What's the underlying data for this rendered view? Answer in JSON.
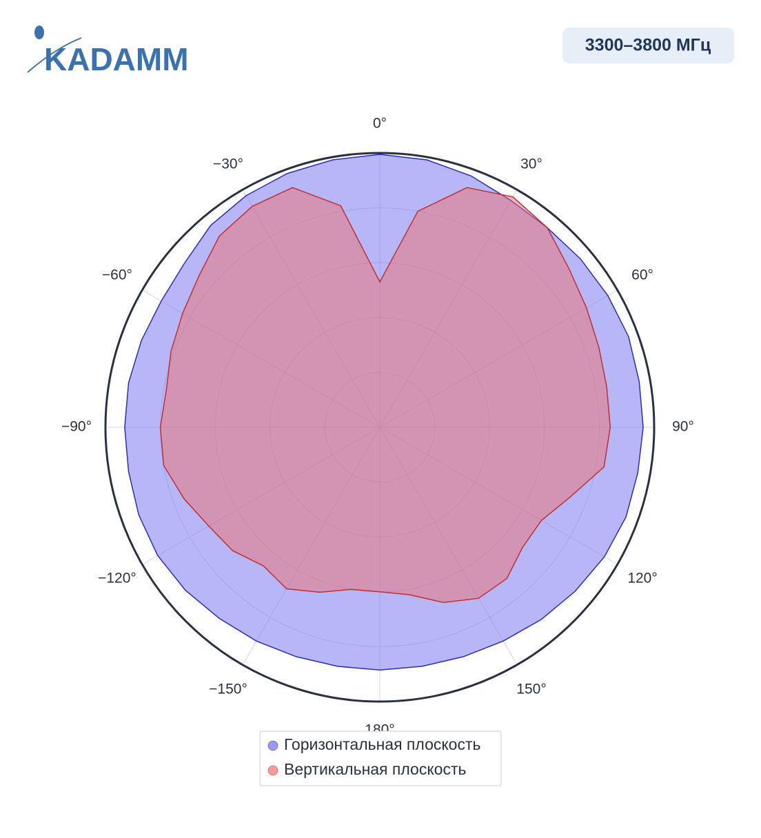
{
  "header": {
    "logo": "KADAMM",
    "badge": "3300–3800 МГц"
  },
  "chart_data": {
    "type": "polar-area",
    "theta": [
      0,
      10,
      20,
      30,
      40,
      50,
      60,
      70,
      80,
      90,
      100,
      110,
      120,
      130,
      140,
      150,
      160,
      170,
      180,
      190,
      200,
      210,
      220,
      230,
      240,
      250,
      260,
      270,
      280,
      290,
      300,
      310,
      320,
      330,
      340,
      350
    ],
    "series": [
      {
        "name": "Горизонтальная плоскость",
        "color": "#6f6ff0",
        "line_color": "#2a2ac0",
        "values": [
          0.995,
          0.99,
          0.975,
          0.955,
          0.95,
          0.955,
          0.96,
          0.965,
          0.96,
          0.96,
          0.955,
          0.955,
          0.945,
          0.93,
          0.915,
          0.9,
          0.89,
          0.885,
          0.885,
          0.885,
          0.89,
          0.9,
          0.91,
          0.925,
          0.935,
          0.935,
          0.93,
          0.93,
          0.93,
          0.925,
          0.92,
          0.93,
          0.96,
          0.975,
          0.985,
          0.99
        ]
      },
      {
        "name": "Вертикальная плоскость",
        "color": "#f07070",
        "line_color": "#c03030",
        "values": [
          0.53,
          0.8,
          0.93,
          0.97,
          0.95,
          0.9,
          0.87,
          0.85,
          0.84,
          0.84,
          0.83,
          0.74,
          0.68,
          0.68,
          0.72,
          0.72,
          0.68,
          0.62,
          0.6,
          0.6,
          0.64,
          0.68,
          0.66,
          0.7,
          0.72,
          0.76,
          0.8,
          0.8,
          0.79,
          0.81,
          0.83,
          0.86,
          0.91,
          0.93,
          0.93,
          0.82
        ]
      }
    ],
    "rlim": [
      0,
      1
    ],
    "rticks": [
      0.2,
      0.4,
      0.6,
      0.8
    ],
    "thetaticks": [
      {
        "value": 0,
        "label": "0°"
      },
      {
        "value": 30,
        "label": "30°"
      },
      {
        "value": 60,
        "label": "60°"
      },
      {
        "value": 90,
        "label": "90°"
      },
      {
        "value": 120,
        "label": "120°"
      },
      {
        "value": 150,
        "label": "150°"
      },
      {
        "value": 180,
        "label": "180°"
      },
      {
        "value": -150,
        "label": "−150°"
      },
      {
        "value": -120,
        "label": "−120°"
      },
      {
        "value": -90,
        "label": "−90°"
      },
      {
        "value": -60,
        "label": "−60°"
      },
      {
        "value": -30,
        "label": "−30°"
      }
    ],
    "direction": "clockwise",
    "grid": true
  }
}
